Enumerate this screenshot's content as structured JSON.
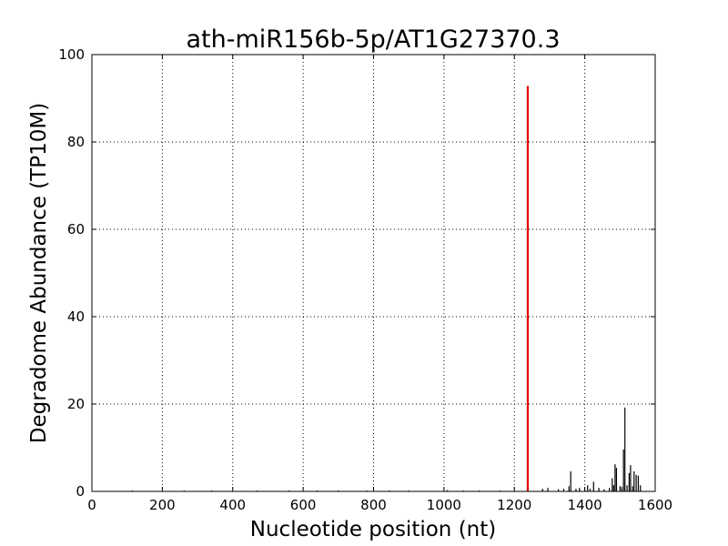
{
  "chart_data": {
    "type": "line",
    "title": "ath-miR156b-5p/AT1G27370.3",
    "xlabel": "Nucleotide position (nt)",
    "ylabel": "Degradome Abundance (TP10M)",
    "xlim": [
      0,
      1600
    ],
    "ylim": [
      0,
      100
    ],
    "xticks": [
      0,
      200,
      400,
      600,
      800,
      1000,
      1200,
      1400,
      1600
    ],
    "yticks": [
      0,
      20,
      40,
      60,
      80,
      100
    ],
    "grid": true,
    "colors": {
      "background_series": "#000000",
      "highlight": "#e00000"
    },
    "series": [
      {
        "x": [
          115,
          200,
          262,
          340,
          470,
          560,
          640,
          700,
          780,
          845,
          900,
          1010,
          1055,
          1100,
          1160,
          1200,
          1280,
          1295,
          1325,
          1340,
          1355,
          1360,
          1375,
          1385,
          1400,
          1408,
          1415,
          1425,
          1440,
          1455,
          1470,
          1478,
          1482,
          1486,
          1490,
          1500,
          1505,
          1510,
          1514,
          1520,
          1526,
          1530,
          1536,
          1540,
          1546,
          1552,
          1558
        ],
        "values": [
          0.2,
          0.2,
          0.2,
          0.2,
          0.2,
          0.2,
          0.2,
          0.2,
          0.2,
          0.2,
          0.2,
          0.3,
          0.2,
          0.2,
          0.2,
          0.2,
          0.6,
          0.8,
          0.5,
          0.6,
          1.2,
          4.6,
          0.6,
          0.8,
          0.4,
          1.4,
          0.6,
          2.2,
          0.8,
          0.5,
          0.8,
          3.0,
          1.4,
          6.2,
          5.4,
          1.2,
          1.0,
          9.6,
          19.2,
          1.4,
          4.2,
          6.0,
          1.2,
          4.6,
          3.8,
          3.6,
          1.4
        ]
      },
      {
        "x": [
          1238
        ],
        "values": [
          92.8
        ]
      }
    ]
  }
}
